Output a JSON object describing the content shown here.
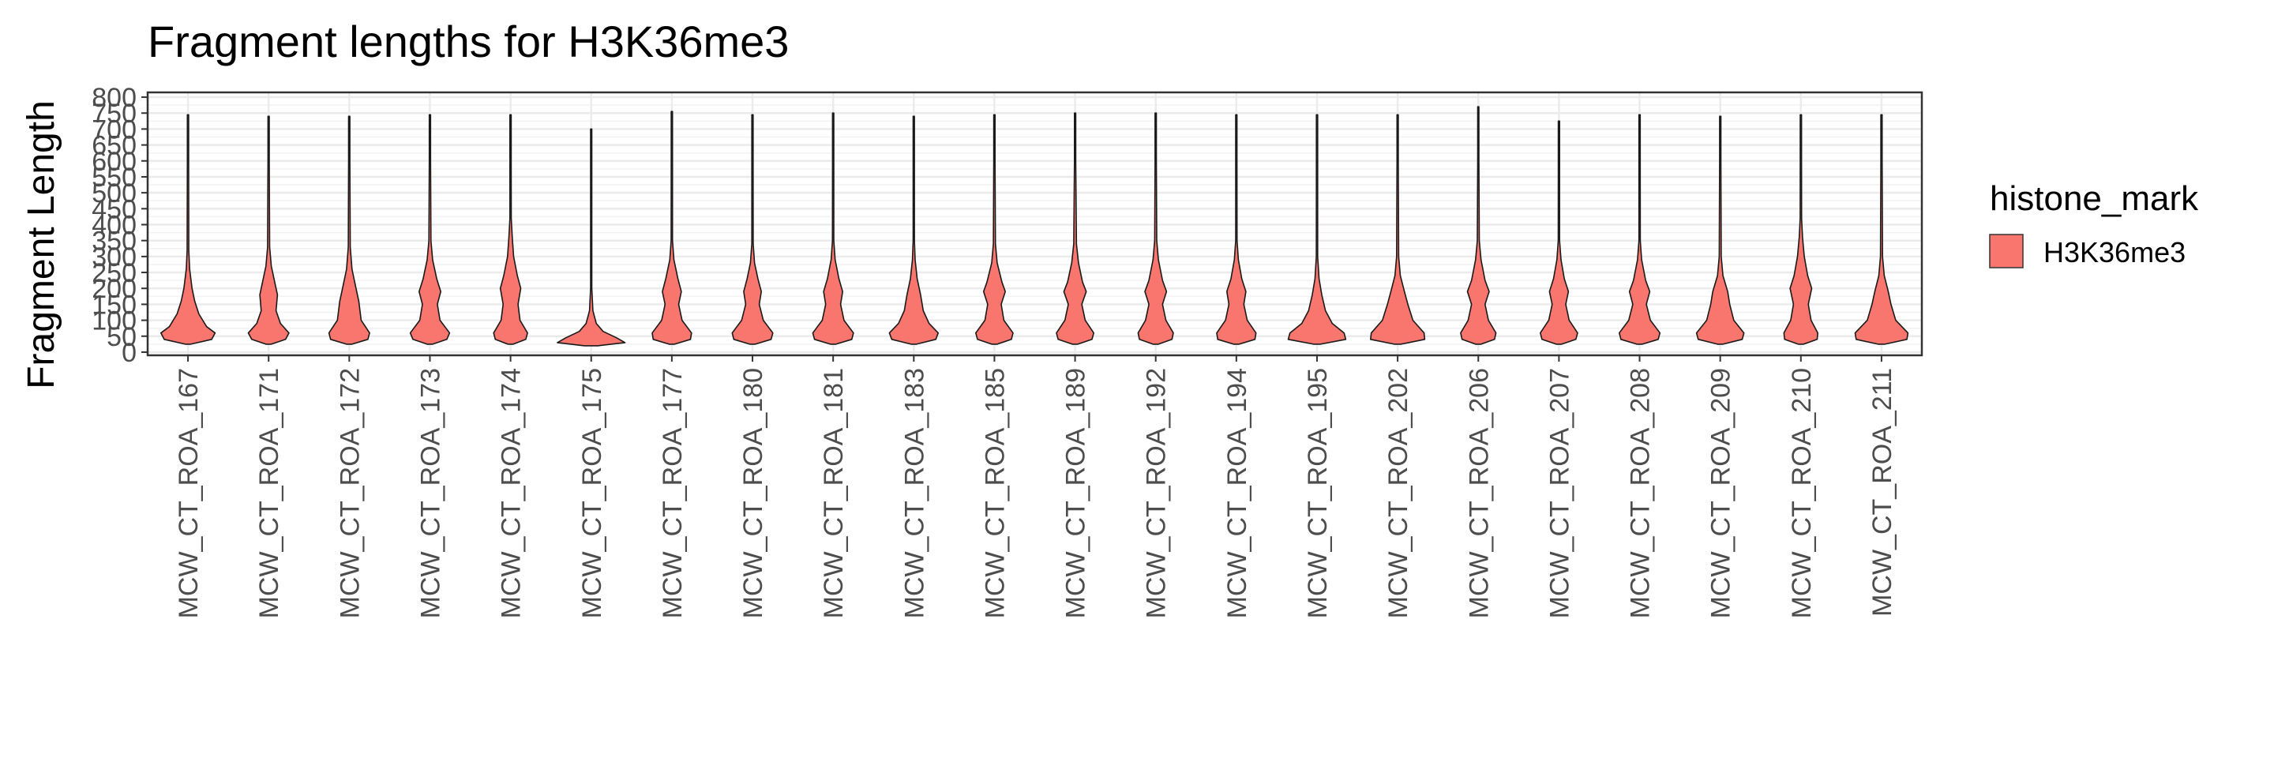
{
  "chart_data": {
    "type": "violin",
    "title": "Fragment lengths for H3K36me3",
    "xlabel": "",
    "ylabel": "Fragment Length",
    "ylim": [
      -10,
      815
    ],
    "y_ticks": [
      0,
      50,
      100,
      150,
      200,
      250,
      300,
      350,
      400,
      450,
      500,
      550,
      600,
      650,
      700,
      750,
      800
    ],
    "grid": true,
    "legend": {
      "title": "histone_mark",
      "position": "right",
      "entries": [
        {
          "label": "H3K36me3",
          "color": "#F8766D"
        }
      ]
    },
    "fill_color": "#F8766D",
    "categories": [
      "MCW_CT_ROA_167",
      "MCW_CT_ROA_171",
      "MCW_CT_ROA_172",
      "MCW_CT_ROA_173",
      "MCW_CT_ROA_174",
      "MCW_CT_ROA_175",
      "MCW_CT_ROA_177",
      "MCW_CT_ROA_180",
      "MCW_CT_ROA_181",
      "MCW_CT_ROA_183",
      "MCW_CT_ROA_185",
      "MCW_CT_ROA_189",
      "MCW_CT_ROA_192",
      "MCW_CT_ROA_194",
      "MCW_CT_ROA_195",
      "MCW_CT_ROA_202",
      "MCW_CT_ROA_206",
      "MCW_CT_ROA_207",
      "MCW_CT_ROA_208",
      "MCW_CT_ROA_209",
      "MCW_CT_ROA_210",
      "MCW_CT_ROA_211"
    ],
    "violins": [
      {
        "min": 25,
        "max": 745,
        "width": [
          [
            25,
            0.08
          ],
          [
            40,
            0.7
          ],
          [
            60,
            0.8
          ],
          [
            80,
            0.55
          ],
          [
            120,
            0.32
          ],
          [
            160,
            0.2
          ],
          [
            200,
            0.12
          ],
          [
            260,
            0.05
          ],
          [
            320,
            0.025
          ],
          [
            600,
            0.01
          ],
          [
            745,
            0
          ]
        ]
      },
      {
        "min": 25,
        "max": 740,
        "width": [
          [
            25,
            0.08
          ],
          [
            40,
            0.5
          ],
          [
            60,
            0.6
          ],
          [
            90,
            0.35
          ],
          [
            130,
            0.22
          ],
          [
            180,
            0.26
          ],
          [
            220,
            0.18
          ],
          [
            270,
            0.08
          ],
          [
            330,
            0.03
          ],
          [
            600,
            0.01
          ],
          [
            740,
            0
          ]
        ]
      },
      {
        "min": 25,
        "max": 740,
        "width": [
          [
            25,
            0.08
          ],
          [
            40,
            0.55
          ],
          [
            60,
            0.6
          ],
          [
            100,
            0.35
          ],
          [
            160,
            0.28
          ],
          [
            200,
            0.2
          ],
          [
            260,
            0.08
          ],
          [
            330,
            0.03
          ],
          [
            600,
            0.01
          ],
          [
            740,
            0
          ]
        ]
      },
      {
        "min": 25,
        "max": 745,
        "width": [
          [
            25,
            0.08
          ],
          [
            40,
            0.5
          ],
          [
            60,
            0.58
          ],
          [
            100,
            0.3
          ],
          [
            150,
            0.22
          ],
          [
            190,
            0.32
          ],
          [
            230,
            0.2
          ],
          [
            290,
            0.08
          ],
          [
            350,
            0.03
          ],
          [
            600,
            0.01
          ],
          [
            745,
            0
          ]
        ]
      },
      {
        "min": 25,
        "max": 745,
        "width": [
          [
            25,
            0.08
          ],
          [
            40,
            0.45
          ],
          [
            60,
            0.5
          ],
          [
            100,
            0.28
          ],
          [
            150,
            0.22
          ],
          [
            200,
            0.3
          ],
          [
            240,
            0.2
          ],
          [
            300,
            0.09
          ],
          [
            360,
            0.05
          ],
          [
            420,
            0.02
          ],
          [
            600,
            0.01
          ],
          [
            745,
            0
          ]
        ]
      },
      {
        "min": 20,
        "max": 700,
        "width": [
          [
            20,
            0.2
          ],
          [
            30,
            1.0
          ],
          [
            45,
            0.75
          ],
          [
            65,
            0.35
          ],
          [
            90,
            0.15
          ],
          [
            130,
            0.05
          ],
          [
            200,
            0.015
          ],
          [
            400,
            0.005
          ],
          [
            700,
            0
          ]
        ]
      },
      {
        "min": 25,
        "max": 755,
        "width": [
          [
            25,
            0.08
          ],
          [
            40,
            0.55
          ],
          [
            60,
            0.58
          ],
          [
            100,
            0.3
          ],
          [
            150,
            0.2
          ],
          [
            190,
            0.28
          ],
          [
            230,
            0.18
          ],
          [
            290,
            0.06
          ],
          [
            350,
            0.02
          ],
          [
            600,
            0.01
          ],
          [
            755,
            0
          ]
        ]
      },
      {
        "min": 25,
        "max": 745,
        "width": [
          [
            25,
            0.08
          ],
          [
            40,
            0.55
          ],
          [
            60,
            0.6
          ],
          [
            100,
            0.32
          ],
          [
            150,
            0.2
          ],
          [
            190,
            0.26
          ],
          [
            230,
            0.16
          ],
          [
            280,
            0.06
          ],
          [
            340,
            0.02
          ],
          [
            600,
            0.01
          ],
          [
            745,
            0
          ]
        ]
      },
      {
        "min": 25,
        "max": 750,
        "width": [
          [
            25,
            0.08
          ],
          [
            40,
            0.55
          ],
          [
            60,
            0.6
          ],
          [
            100,
            0.32
          ],
          [
            150,
            0.22
          ],
          [
            190,
            0.28
          ],
          [
            230,
            0.17
          ],
          [
            290,
            0.06
          ],
          [
            350,
            0.02
          ],
          [
            600,
            0.01
          ],
          [
            750,
            0
          ]
        ]
      },
      {
        "min": 25,
        "max": 740,
        "width": [
          [
            25,
            0.08
          ],
          [
            40,
            0.65
          ],
          [
            60,
            0.72
          ],
          [
            90,
            0.45
          ],
          [
            130,
            0.28
          ],
          [
            180,
            0.2
          ],
          [
            230,
            0.1
          ],
          [
            290,
            0.04
          ],
          [
            350,
            0.015
          ],
          [
            600,
            0.005
          ],
          [
            740,
            0
          ]
        ]
      },
      {
        "min": 25,
        "max": 745,
        "width": [
          [
            25,
            0.08
          ],
          [
            40,
            0.5
          ],
          [
            60,
            0.55
          ],
          [
            100,
            0.28
          ],
          [
            150,
            0.2
          ],
          [
            190,
            0.32
          ],
          [
            220,
            0.22
          ],
          [
            280,
            0.08
          ],
          [
            340,
            0.03
          ],
          [
            600,
            0.01
          ],
          [
            745,
            0
          ]
        ]
      },
      {
        "min": 25,
        "max": 750,
        "width": [
          [
            25,
            0.08
          ],
          [
            40,
            0.5
          ],
          [
            60,
            0.55
          ],
          [
            100,
            0.3
          ],
          [
            150,
            0.2
          ],
          [
            190,
            0.33
          ],
          [
            220,
            0.22
          ],
          [
            280,
            0.1
          ],
          [
            340,
            0.04
          ],
          [
            600,
            0.01
          ],
          [
            750,
            0
          ]
        ]
      },
      {
        "min": 25,
        "max": 750,
        "width": [
          [
            25,
            0.08
          ],
          [
            40,
            0.48
          ],
          [
            60,
            0.52
          ],
          [
            100,
            0.3
          ],
          [
            150,
            0.2
          ],
          [
            190,
            0.32
          ],
          [
            225,
            0.2
          ],
          [
            290,
            0.08
          ],
          [
            350,
            0.03
          ],
          [
            600,
            0.01
          ],
          [
            750,
            0
          ]
        ]
      },
      {
        "min": 25,
        "max": 745,
        "width": [
          [
            25,
            0.08
          ],
          [
            40,
            0.55
          ],
          [
            60,
            0.58
          ],
          [
            100,
            0.32
          ],
          [
            150,
            0.22
          ],
          [
            190,
            0.28
          ],
          [
            230,
            0.16
          ],
          [
            290,
            0.06
          ],
          [
            350,
            0.02
          ],
          [
            600,
            0.01
          ],
          [
            745,
            0
          ]
        ]
      },
      {
        "min": 25,
        "max": 745,
        "width": [
          [
            25,
            0.1
          ],
          [
            40,
            0.85
          ],
          [
            60,
            0.8
          ],
          [
            90,
            0.45
          ],
          [
            130,
            0.25
          ],
          [
            180,
            0.14
          ],
          [
            230,
            0.06
          ],
          [
            300,
            0.02
          ],
          [
            600,
            0.005
          ],
          [
            745,
            0
          ]
        ]
      },
      {
        "min": 25,
        "max": 745,
        "width": [
          [
            25,
            0.1
          ],
          [
            40,
            0.8
          ],
          [
            60,
            0.78
          ],
          [
            100,
            0.45
          ],
          [
            150,
            0.3
          ],
          [
            190,
            0.2
          ],
          [
            240,
            0.08
          ],
          [
            300,
            0.03
          ],
          [
            600,
            0.01
          ],
          [
            745,
            0
          ]
        ]
      },
      {
        "min": 25,
        "max": 770,
        "width": [
          [
            25,
            0.08
          ],
          [
            40,
            0.48
          ],
          [
            60,
            0.52
          ],
          [
            100,
            0.3
          ],
          [
            150,
            0.2
          ],
          [
            190,
            0.32
          ],
          [
            225,
            0.2
          ],
          [
            290,
            0.08
          ],
          [
            350,
            0.03
          ],
          [
            600,
            0.01
          ],
          [
            770,
            0
          ]
        ]
      },
      {
        "min": 25,
        "max": 725,
        "width": [
          [
            25,
            0.08
          ],
          [
            40,
            0.5
          ],
          [
            60,
            0.55
          ],
          [
            100,
            0.3
          ],
          [
            150,
            0.2
          ],
          [
            190,
            0.28
          ],
          [
            230,
            0.16
          ],
          [
            290,
            0.06
          ],
          [
            350,
            0.02
          ],
          [
            600,
            0.01
          ],
          [
            725,
            0
          ]
        ]
      },
      {
        "min": 25,
        "max": 745,
        "width": [
          [
            25,
            0.08
          ],
          [
            40,
            0.55
          ],
          [
            60,
            0.6
          ],
          [
            100,
            0.32
          ],
          [
            150,
            0.2
          ],
          [
            190,
            0.3
          ],
          [
            225,
            0.18
          ],
          [
            290,
            0.06
          ],
          [
            350,
            0.02
          ],
          [
            600,
            0.01
          ],
          [
            745,
            0
          ]
        ]
      },
      {
        "min": 25,
        "max": 740,
        "width": [
          [
            25,
            0.08
          ],
          [
            40,
            0.65
          ],
          [
            60,
            0.7
          ],
          [
            100,
            0.4
          ],
          [
            150,
            0.28
          ],
          [
            190,
            0.22
          ],
          [
            240,
            0.08
          ],
          [
            300,
            0.03
          ],
          [
            600,
            0.01
          ],
          [
            740,
            0
          ]
        ]
      },
      {
        "min": 25,
        "max": 745,
        "width": [
          [
            25,
            0.08
          ],
          [
            40,
            0.48
          ],
          [
            60,
            0.5
          ],
          [
            100,
            0.3
          ],
          [
            150,
            0.22
          ],
          [
            200,
            0.32
          ],
          [
            240,
            0.2
          ],
          [
            300,
            0.1
          ],
          [
            360,
            0.05
          ],
          [
            420,
            0.02
          ],
          [
            600,
            0.01
          ],
          [
            745,
            0
          ]
        ]
      },
      {
        "min": 25,
        "max": 745,
        "width": [
          [
            25,
            0.1
          ],
          [
            40,
            0.75
          ],
          [
            60,
            0.78
          ],
          [
            100,
            0.42
          ],
          [
            150,
            0.28
          ],
          [
            190,
            0.2
          ],
          [
            240,
            0.08
          ],
          [
            300,
            0.03
          ],
          [
            600,
            0.01
          ],
          [
            745,
            0
          ]
        ]
      }
    ]
  }
}
